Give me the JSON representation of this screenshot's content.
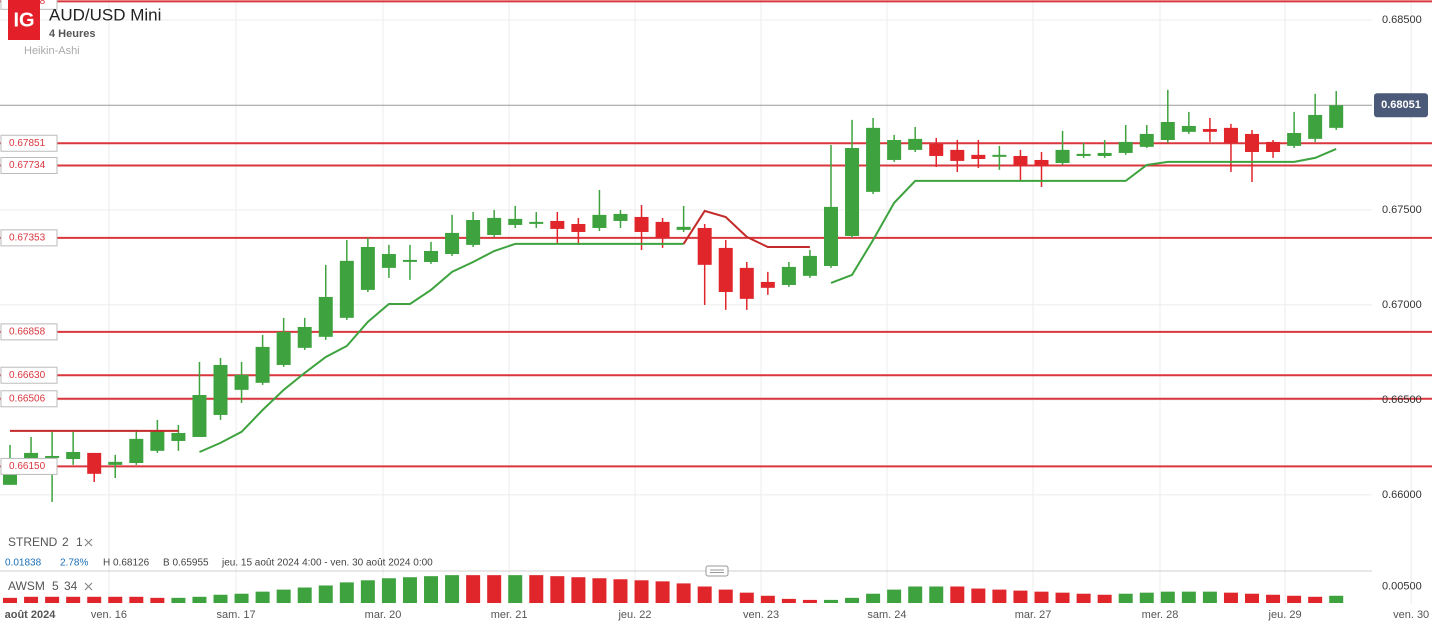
{
  "header": {
    "logo": "IG",
    "title": "AUD/USD Mini",
    "interval": "4 Heures",
    "style": "Heikin-Ashi"
  },
  "chart_data": {
    "type": "candlestick",
    "xlim": [
      -0.475,
      64.7
    ],
    "xticks": [
      {
        "value": 0.95,
        "label": "août 2024"
      },
      {
        "value": 4.7,
        "label": "ven. 16"
      },
      {
        "value": 10.74,
        "label": "sam. 17"
      },
      {
        "value": 17.72,
        "label": "mar. 20"
      },
      {
        "value": 23.71,
        "label": "mer. 21"
      },
      {
        "value": 29.69,
        "label": "jeu. 22"
      },
      {
        "value": 35.68,
        "label": "ven. 23"
      },
      {
        "value": 41.66,
        "label": "sam. 24"
      },
      {
        "value": 48.6,
        "label": "mar. 27"
      },
      {
        "value": 54.63,
        "label": "mer. 28"
      },
      {
        "value": 60.57,
        "label": "jeu. 29"
      },
      {
        "value": 66.56,
        "label": "ven. 30"
      }
    ],
    "ylim": [
      0.65789,
      0.68605
    ],
    "yticks": [
      {
        "value": 0.685,
        "label": "0.68500"
      },
      {
        "value": 0.675,
        "label": "0.67500"
      },
      {
        "value": 0.67,
        "label": "0.67000"
      },
      {
        "value": 0.665,
        "label": "0.66500"
      },
      {
        "value": 0.66,
        "label": "0.66000"
      }
    ],
    "grid": true,
    "colors": {
      "up": "#3ea33e",
      "down": "#e0262b"
    },
    "open": [
      0.66053,
      0.66184,
      0.66195,
      0.66189,
      0.66221,
      0.66158,
      0.66168,
      0.66232,
      0.66284,
      0.66305,
      0.66421,
      0.66553,
      0.6659,
      0.66684,
      0.66774,
      0.66832,
      0.66932,
      0.67079,
      0.67195,
      0.67232,
      0.67226,
      0.67268,
      0.67316,
      0.67368,
      0.67421,
      0.67432,
      0.67442,
      0.67426,
      0.67405,
      0.67442,
      0.67463,
      0.67437,
      0.67395,
      0.67405,
      0.673,
      0.67195,
      0.67121,
      0.67105,
      0.67153,
      0.67205,
      0.67363,
      0.67595,
      0.67763,
      0.67816,
      0.67847,
      0.67816,
      0.6779,
      0.67784,
      0.67784,
      0.67763,
      0.67747,
      0.67784,
      0.67784,
      0.678,
      0.67832,
      0.67868,
      0.67911,
      0.67926,
      0.67932,
      0.679,
      0.67858,
      0.67837,
      0.67874,
      0.67932
    ],
    "high": [
      0.66263,
      0.66305,
      0.66332,
      0.66332,
      0.66221,
      0.66211,
      0.66342,
      0.66395,
      0.66368,
      0.667,
      0.66721,
      0.667,
      0.66842,
      0.66932,
      0.66932,
      0.67211,
      0.67342,
      0.67353,
      0.67316,
      0.67316,
      0.67332,
      0.67474,
      0.67489,
      0.675,
      0.67521,
      0.67489,
      0.67489,
      0.67458,
      0.67605,
      0.675,
      0.67526,
      0.67458,
      0.67521,
      0.67426,
      0.67342,
      0.67226,
      0.67174,
      0.67226,
      0.67289,
      0.67842,
      0.67974,
      0.67984,
      0.67895,
      0.67937,
      0.67879,
      0.67868,
      0.67868,
      0.67837,
      0.67816,
      0.67805,
      0.67916,
      0.67853,
      0.67868,
      0.67947,
      0.67947,
      0.68132,
      0.68016,
      0.67984,
      0.67953,
      0.67921,
      0.67868,
      0.68016,
      0.68111,
      0.68126
    ],
    "low": [
      0.66053,
      0.66158,
      0.65963,
      0.66158,
      0.66068,
      0.66089,
      0.66158,
      0.66221,
      0.66232,
      0.66305,
      0.66395,
      0.66484,
      0.66579,
      0.66674,
      0.66763,
      0.66816,
      0.66921,
      0.67068,
      0.67142,
      0.67132,
      0.67216,
      0.67258,
      0.67305,
      0.67358,
      0.67405,
      0.67405,
      0.67326,
      0.67316,
      0.67389,
      0.67405,
      0.67289,
      0.673,
      0.67384,
      0.67,
      0.66974,
      0.66974,
      0.67053,
      0.67095,
      0.67142,
      0.67195,
      0.67353,
      0.67584,
      0.67753,
      0.67805,
      0.67726,
      0.677,
      0.67721,
      0.67711,
      0.67658,
      0.67621,
      0.67737,
      0.67774,
      0.67774,
      0.6779,
      0.67826,
      0.67853,
      0.679,
      0.67858,
      0.677,
      0.67647,
      0.67774,
      0.67826,
      0.67858,
      0.67921
    ],
    "close": [
      0.66184,
      0.66221,
      0.66205,
      0.66226,
      0.66111,
      0.66174,
      0.66295,
      0.66337,
      0.66326,
      0.66526,
      0.66684,
      0.66632,
      0.66779,
      0.66858,
      0.66884,
      0.67042,
      0.67232,
      0.67305,
      0.67268,
      0.67237,
      0.67284,
      0.67379,
      0.67447,
      0.67458,
      0.67453,
      0.67437,
      0.674,
      0.67384,
      0.67474,
      0.67479,
      0.67384,
      0.67353,
      0.67411,
      0.67211,
      0.67068,
      0.67032,
      0.6709,
      0.672,
      0.67258,
      0.67516,
      0.67826,
      0.67932,
      0.67868,
      0.67874,
      0.67784,
      0.67758,
      0.67768,
      0.6779,
      0.67732,
      0.67732,
      0.67816,
      0.67795,
      0.678,
      0.67858,
      0.679,
      0.67963,
      0.67942,
      0.67911,
      0.67853,
      0.67805,
      0.67805,
      0.67905,
      0.68,
      0.68051
    ],
    "last": 0.68051,
    "last_color": "#4b5a78",
    "levels": [
      0.68598,
      0.67851,
      0.67734,
      0.67353,
      0.66858,
      {
        "value": 0.6663,
        "label": "0.66630"
      },
      0.66506,
      {
        "value": 0.6615,
        "label": "0.66150"
      }
    ],
    "level_color": "#d9363e",
    "supertrend": {
      "name": "STREND",
      "params": [
        2,
        1
      ],
      "up_color": "#3ea33e",
      "down_color": "#c42a2a",
      "up": [
        null,
        null,
        null,
        null,
        null,
        null,
        null,
        null,
        null,
        0.66226,
        0.66274,
        0.66332,
        0.66447,
        0.66553,
        0.66642,
        0.66726,
        0.66784,
        0.66911,
        0.67005,
        0.67005,
        0.67079,
        0.67174,
        0.67226,
        0.67284,
        0.67321,
        0.67321,
        0.67321,
        0.67321,
        0.67321,
        0.67321,
        0.67321,
        0.67321,
        0.67321,
        null,
        null,
        null,
        null,
        null,
        null,
        0.67116,
        0.67158,
        0.67342,
        0.67537,
        0.67653,
        0.67653,
        0.67653,
        0.67653,
        0.67653,
        0.67653,
        0.67653,
        0.67653,
        0.67653,
        0.67653,
        0.67653,
        0.67737,
        0.67753,
        0.67753,
        0.67753,
        0.67753,
        0.67753,
        0.67753,
        0.67753,
        0.67774,
        0.67821
      ],
      "down": [
        0.66337,
        0.66337,
        0.66337,
        0.66337,
        0.66337,
        0.66337,
        0.66337,
        0.66337,
        0.66337,
        null,
        null,
        null,
        null,
        null,
        null,
        null,
        null,
        null,
        null,
        null,
        null,
        null,
        null,
        null,
        null,
        null,
        null,
        null,
        null,
        null,
        null,
        null,
        0.67321,
        0.67495,
        0.67463,
        0.67358,
        0.67305,
        0.67305,
        0.67305,
        null,
        null,
        null,
        null,
        null,
        null,
        null,
        null,
        null,
        null,
        null,
        null,
        null,
        null,
        null,
        null,
        null,
        null,
        null,
        null,
        null,
        null,
        null,
        null,
        null
      ]
    },
    "stats": {
      "change": 0.01838,
      "change_pct": {
        "value": 2.78,
        "label": "2.78%"
      },
      "high": "H 0.68126",
      "low": "B 0.65955",
      "range": "jeu. 15 août 2024 4:00 - ven. 30 août 2024 0:00"
    },
    "awsm": {
      "name": "AWSM",
      "params": [
        5,
        34
      ],
      "ylim": [
        0,
        0.00909
      ],
      "yticks": [
        {
          "value": 0.005,
          "label": "0.00500"
        }
      ],
      "values": [
        0.00156,
        0.00188,
        0.00188,
        0.00188,
        0.00188,
        0.00188,
        0.00188,
        0.00156,
        0.00156,
        0.00188,
        0.0025,
        0.00281,
        0.00344,
        0.00406,
        0.00469,
        0.00531,
        0.00625,
        0.00688,
        0.0075,
        0.00781,
        0.00813,
        0.00844,
        0.00844,
        0.00844,
        0.00844,
        0.00844,
        0.00813,
        0.00781,
        0.0075,
        0.00719,
        0.00688,
        0.00656,
        0.00594,
        0.005,
        0.00406,
        0.00313,
        0.00219,
        0.00125,
        0.00094,
        0.00094,
        0.00156,
        0.00281,
        0.00406,
        0.005,
        0.005,
        0.005,
        0.00438,
        0.00406,
        0.00375,
        0.00344,
        0.00313,
        0.00281,
        0.0025,
        0.00281,
        0.00313,
        0.00344,
        0.00344,
        0.00344,
        0.00313,
        0.00281,
        0.0025,
        0.00219,
        0.00188,
        0.00219
      ],
      "colors": [
        "#e0262b",
        "#e0262b",
        "#e0262b",
        "#e0262b",
        "#e0262b",
        "#e0262b",
        "#e0262b",
        "#e0262b",
        "#3ea33e",
        "#3ea33e",
        "#3ea33e",
        "#3ea33e",
        "#3ea33e",
        "#3ea33e",
        "#3ea33e",
        "#3ea33e",
        "#3ea33e",
        "#3ea33e",
        "#3ea33e",
        "#3ea33e",
        "#3ea33e",
        "#3ea33e",
        "#e0262b",
        "#e0262b",
        "#3ea33e",
        "#e0262b",
        "#e0262b",
        "#e0262b",
        "#e0262b",
        "#e0262b",
        "#e0262b",
        "#e0262b",
        "#e0262b",
        "#e0262b",
        "#e0262b",
        "#e0262b",
        "#e0262b",
        "#e0262b",
        "#e0262b",
        "#3ea33e",
        "#3ea33e",
        "#3ea33e",
        "#3ea33e",
        "#3ea33e",
        "#3ea33e",
        "#e0262b",
        "#e0262b",
        "#e0262b",
        "#e0262b",
        "#e0262b",
        "#e0262b",
        "#e0262b",
        "#e0262b",
        "#3ea33e",
        "#3ea33e",
        "#3ea33e",
        "#3ea33e",
        "#3ea33e",
        "#e0262b",
        "#e0262b",
        "#e0262b",
        "#e0262b",
        "#e0262b",
        "#3ea33e"
      ]
    }
  }
}
